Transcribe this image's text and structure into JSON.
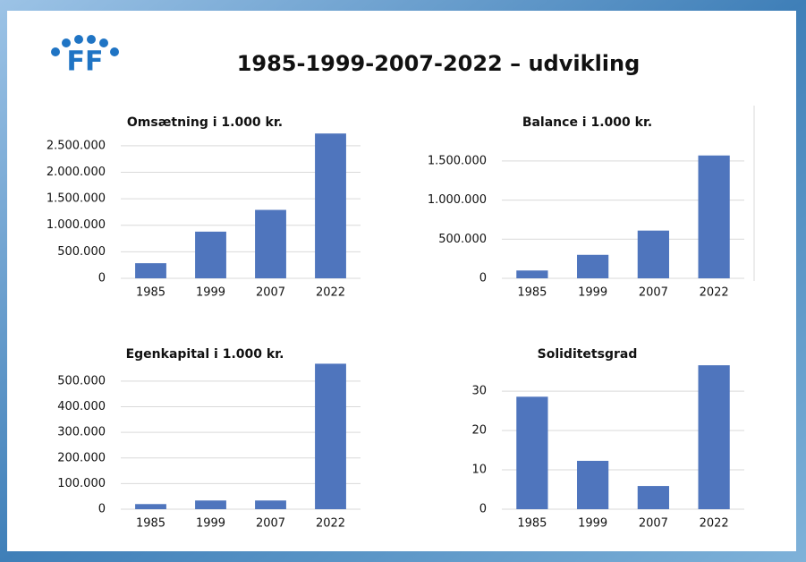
{
  "title": "1985-1999-2007-2022 – udvikling",
  "chart_data": [
    {
      "type": "bar",
      "title": "Omsætning i 1.000 kr.",
      "categories": [
        "1985",
        "1999",
        "2007",
        "2022"
      ],
      "values": [
        285000,
        880000,
        1290000,
        2730000
      ],
      "color": "#4f75bd",
      "ylim": [
        0,
        2750000
      ],
      "yticks": [
        0,
        {
          "value": 500000,
          "label": "500.000"
        },
        {
          "value": 1000000,
          "label": "1.000.000"
        },
        {
          "value": 1500000,
          "label": "1.500.000"
        },
        {
          "value": 2000000,
          "label": "2.000.000"
        },
        {
          "value": 2500000,
          "label": "2.500.000"
        }
      ],
      "grid": true
    },
    {
      "type": "bar",
      "title": "Balance i 1.000 kr.",
      "categories": [
        "1985",
        "1999",
        "2007",
        "2022"
      ],
      "values": [
        100000,
        300000,
        610000,
        1570000
      ],
      "color": "#4f75bd",
      "ylim": [
        0,
        1750000
      ],
      "yticks": [
        0,
        {
          "value": 500000,
          "label": "500.000"
        },
        {
          "value": 1000000,
          "label": "1.000.000"
        },
        {
          "value": 1500000,
          "label": "1.500.000"
        }
      ],
      "grid": true
    },
    {
      "type": "bar",
      "title": "Egenkapital i 1.000 kr.",
      "categories": [
        "1985",
        "1999",
        "2007",
        "2022"
      ],
      "values": [
        20000,
        34000,
        34000,
        568000
      ],
      "color": "#4f75bd",
      "ylim": [
        0,
        580000
      ],
      "yticks": [
        0,
        {
          "value": 100000,
          "label": "100.000"
        },
        {
          "value": 200000,
          "label": "200.000"
        },
        {
          "value": 300000,
          "label": "300.000"
        },
        {
          "value": 400000,
          "label": "400.000"
        },
        {
          "value": 500000,
          "label": "500.000"
        }
      ],
      "grid": true
    },
    {
      "type": "bar",
      "title": "Soliditetsgrad",
      "categories": [
        "1985",
        "1999",
        "2007",
        "2022"
      ],
      "values": [
        28.6,
        12.3,
        5.9,
        36.6
      ],
      "color": "#4f75bd",
      "ylim": [
        0,
        38
      ],
      "yticks": [
        0,
        10,
        20,
        30
      ],
      "grid": true
    }
  ]
}
